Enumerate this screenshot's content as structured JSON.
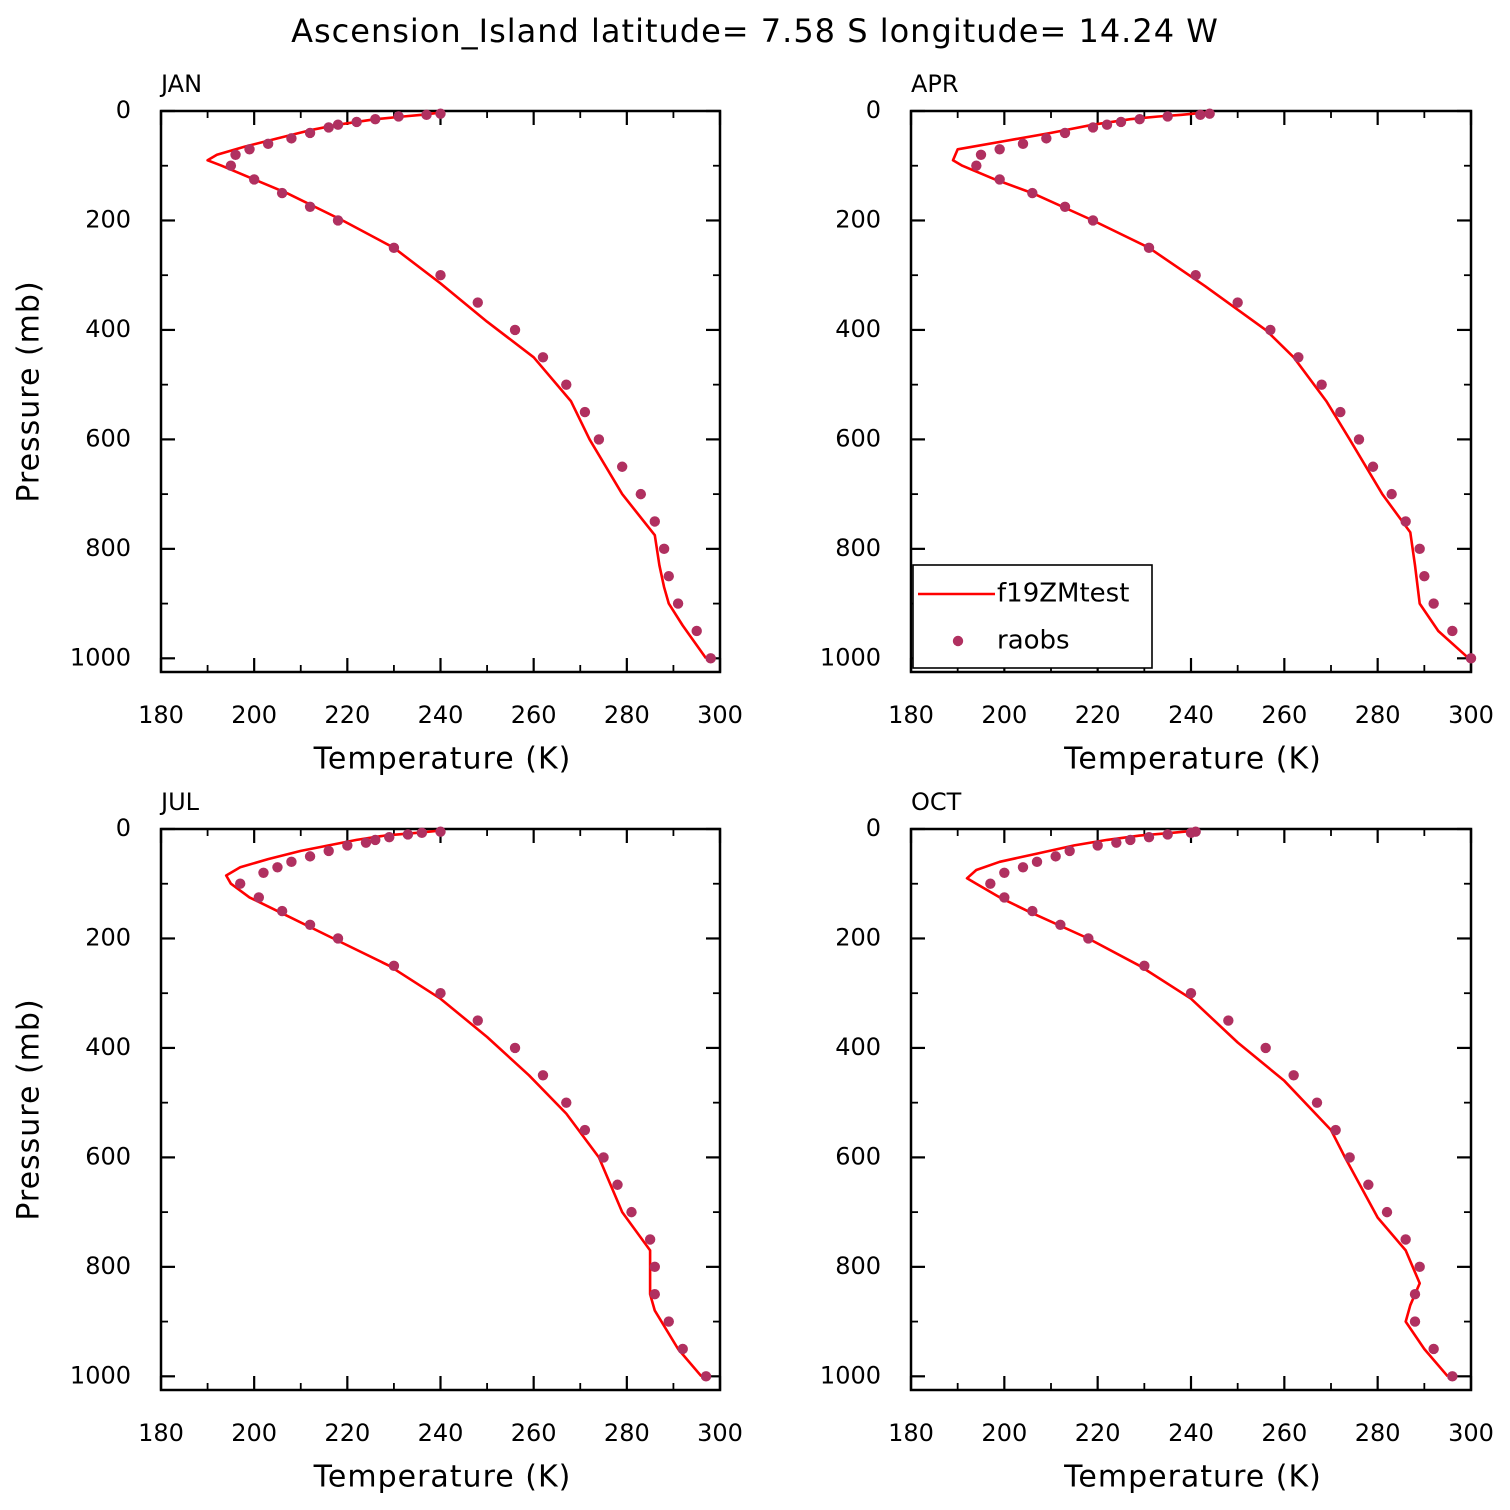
{
  "title": "Ascension_Island  latitude= 7.58 S longitude= 14.24 W",
  "chart_data": [
    {
      "type": "line",
      "panel_label": "JAN",
      "xlabel": "Temperature (K)",
      "ylabel": "Pressure (mb)",
      "xlim": [
        180,
        300
      ],
      "xticks": [
        180,
        200,
        220,
        240,
        260,
        280,
        300
      ],
      "xminor": [
        190,
        210,
        230,
        250,
        270,
        290
      ],
      "ylim": [
        0,
        1025
      ],
      "y_inverted": true,
      "yticks": [
        0,
        200,
        400,
        600,
        800,
        1000
      ],
      "yminor": [
        100,
        300,
        500,
        700,
        900
      ],
      "series": [
        {
          "name": "f19ZMtest",
          "color": "#ff0000",
          "style": "line",
          "x": [
            240,
            236,
            232,
            226,
            218,
            212,
            205,
            198,
            192,
            190,
            193,
            200,
            207,
            219,
            230,
            240,
            250,
            260,
            268,
            272,
            279,
            286,
            287,
            288,
            289,
            292,
            297
          ],
          "values": [
            3,
            7,
            10,
            15,
            25,
            35,
            50,
            65,
            80,
            90,
            100,
            125,
            150,
            200,
            250,
            315,
            385,
            450,
            530,
            600,
            700,
            775,
            830,
            870,
            900,
            940,
            1000
          ]
        },
        {
          "name": "raobs",
          "color": "#b03060",
          "style": "dots",
          "x": [
            240,
            237,
            231,
            226,
            222,
            218,
            216,
            212,
            208,
            203,
            199,
            196,
            195,
            200,
            206,
            212,
            218,
            230,
            240,
            248,
            256,
            262,
            267,
            271,
            274,
            279,
            283,
            286,
            288,
            289,
            291,
            295,
            298
          ],
          "values": [
            5,
            7,
            10,
            15,
            20,
            25,
            30,
            40,
            50,
            60,
            70,
            80,
            100,
            125,
            150,
            175,
            200,
            250,
            300,
            350,
            400,
            450,
            500,
            550,
            600,
            650,
            700,
            750,
            800,
            850,
            900,
            950,
            1000
          ]
        }
      ]
    },
    {
      "type": "line",
      "panel_label": "APR",
      "xlabel": "Temperature (K)",
      "ylabel": null,
      "legend": "lower left",
      "xlim": [
        180,
        300
      ],
      "xticks": [
        180,
        200,
        220,
        240,
        260,
        280,
        300
      ],
      "xminor": [
        190,
        210,
        230,
        250,
        270,
        290
      ],
      "ylim": [
        0,
        1025
      ],
      "y_inverted": true,
      "yticks": [
        0,
        200,
        400,
        600,
        800,
        1000
      ],
      "yminor": [
        100,
        300,
        500,
        700,
        900
      ],
      "series": [
        {
          "name": "f19ZMtest",
          "color": "#ff0000",
          "style": "line",
          "x": [
            243,
            238,
            233,
            227,
            219,
            210,
            200,
            190,
            189,
            191,
            198,
            206,
            219,
            231,
            243,
            256,
            262,
            269,
            274,
            281,
            287,
            288,
            289,
            293,
            299.5
          ],
          "values": [
            3,
            7,
            10,
            15,
            25,
            40,
            55,
            70,
            90,
            100,
            125,
            150,
            200,
            250,
            320,
            400,
            450,
            530,
            600,
            700,
            770,
            830,
            900,
            950,
            1000
          ]
        },
        {
          "name": "raobs",
          "color": "#b03060",
          "style": "dots",
          "x": [
            244,
            242,
            235,
            229,
            225,
            222,
            219,
            213,
            209,
            204,
            199,
            195,
            194,
            199,
            206,
            213,
            219,
            231,
            241,
            250,
            257,
            263,
            268,
            272,
            276,
            279,
            283,
            286,
            289,
            290,
            292,
            296,
            300
          ],
          "values": [
            5,
            7,
            10,
            15,
            20,
            25,
            30,
            40,
            50,
            60,
            70,
            80,
            100,
            125,
            150,
            175,
            200,
            250,
            300,
            350,
            400,
            450,
            500,
            550,
            600,
            650,
            700,
            750,
            800,
            850,
            900,
            950,
            1000
          ]
        }
      ]
    },
    {
      "type": "line",
      "panel_label": "JUL",
      "xlabel": "Temperature (K)",
      "ylabel": "Pressure (mb)",
      "xlim": [
        180,
        300
      ],
      "xticks": [
        180,
        200,
        220,
        240,
        260,
        280,
        300
      ],
      "xminor": [
        190,
        210,
        230,
        250,
        270,
        290
      ],
      "ylim": [
        0,
        1025
      ],
      "y_inverted": true,
      "yticks": [
        0,
        200,
        400,
        600,
        800,
        1000
      ],
      "yminor": [
        100,
        300,
        500,
        700,
        900
      ],
      "series": [
        {
          "name": "f19ZMtest",
          "color": "#ff0000",
          "style": "line",
          "x": [
            240,
            235,
            228,
            222,
            216,
            210,
            203,
            197,
            194,
            195,
            199,
            205,
            217,
            229,
            240,
            250,
            259,
            267,
            274,
            279,
            285,
            285,
            286,
            291,
            296
          ],
          "values": [
            3,
            7,
            12,
            20,
            30,
            40,
            55,
            70,
            85,
            100,
            125,
            150,
            200,
            250,
            310,
            380,
            450,
            520,
            600,
            700,
            770,
            850,
            880,
            950,
            1000
          ]
        },
        {
          "name": "raobs",
          "color": "#b03060",
          "style": "dots",
          "x": [
            240,
            236,
            233,
            229,
            226,
            224,
            220,
            216,
            212,
            208,
            205,
            202,
            197,
            201,
            206,
            212,
            218,
            230,
            240,
            248,
            256,
            262,
            267,
            271,
            275,
            278,
            281,
            285,
            286,
            286,
            289,
            292,
            297
          ],
          "values": [
            5,
            7,
            10,
            15,
            20,
            25,
            30,
            40,
            50,
            60,
            70,
            80,
            100,
            125,
            150,
            175,
            200,
            250,
            300,
            350,
            400,
            450,
            500,
            550,
            600,
            650,
            700,
            750,
            800,
            850,
            900,
            950,
            1000
          ]
        }
      ]
    },
    {
      "type": "line",
      "panel_label": "OCT",
      "xlabel": "Temperature (K)",
      "ylabel": null,
      "xlim": [
        180,
        300
      ],
      "xticks": [
        180,
        200,
        220,
        240,
        260,
        280,
        300
      ],
      "xminor": [
        190,
        210,
        230,
        250,
        270,
        290
      ],
      "ylim": [
        0,
        1025
      ],
      "y_inverted": true,
      "yticks": [
        0,
        200,
        400,
        600,
        800,
        1000
      ],
      "yminor": [
        100,
        300,
        500,
        700,
        900
      ],
      "series": [
        {
          "name": "f19ZMtest",
          "color": "#ff0000",
          "style": "line",
          "x": [
            241,
            236,
            229,
            222,
            215,
            207,
            199,
            194,
            192,
            194,
            199,
            205,
            218,
            229,
            240,
            250,
            260,
            270,
            273,
            280,
            286,
            289,
            287,
            286,
            290,
            295
          ],
          "values": [
            3,
            7,
            12,
            20,
            30,
            45,
            60,
            75,
            90,
            100,
            125,
            150,
            200,
            250,
            310,
            390,
            460,
            550,
            600,
            710,
            770,
            830,
            870,
            900,
            950,
            1000
          ]
        },
        {
          "name": "raobs",
          "color": "#b03060",
          "style": "dots",
          "x": [
            241,
            240,
            235,
            231,
            227,
            224,
            220,
            214,
            211,
            207,
            204,
            200,
            197,
            200,
            206,
            212,
            218,
            230,
            240,
            248,
            256,
            262,
            267,
            271,
            274,
            278,
            282,
            286,
            289,
            288,
            288,
            292,
            296
          ],
          "values": [
            5,
            7,
            10,
            15,
            20,
            25,
            30,
            40,
            50,
            60,
            70,
            80,
            100,
            125,
            150,
            175,
            200,
            250,
            300,
            350,
            400,
            450,
            500,
            550,
            600,
            650,
            700,
            750,
            800,
            850,
            900,
            950,
            1000
          ]
        }
      ]
    }
  ]
}
